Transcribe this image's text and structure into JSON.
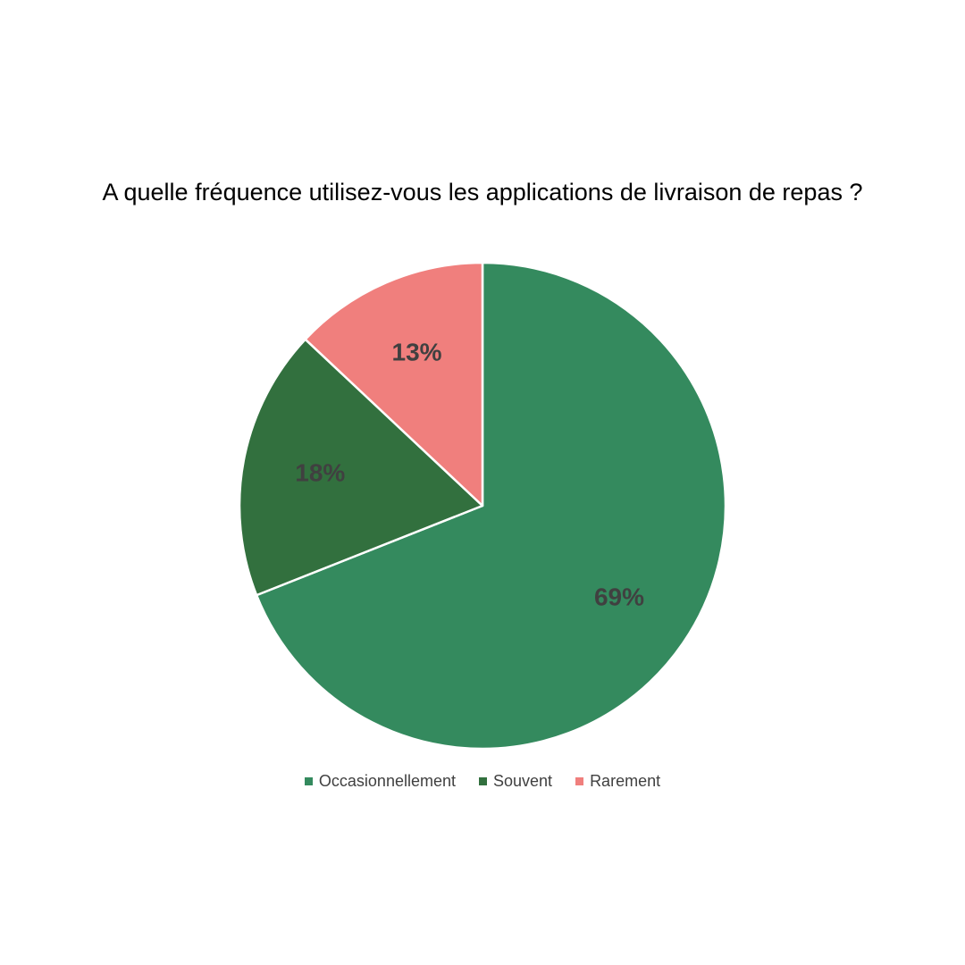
{
  "chart_data": {
    "type": "pie",
    "title": "A quelle fréquence utilisez-vous les applications de livraison de repas ?",
    "legend_position": "bottom",
    "slices": [
      {
        "label": "Occasionnellement",
        "value": 69,
        "display": "69%",
        "color": "#348a5e"
      },
      {
        "label": "Souvent",
        "value": 18,
        "display": "18%",
        "color": "#32703e"
      },
      {
        "label": "Rarement",
        "value": 13,
        "display": "13%",
        "color": "#f07f7d"
      }
    ]
  }
}
